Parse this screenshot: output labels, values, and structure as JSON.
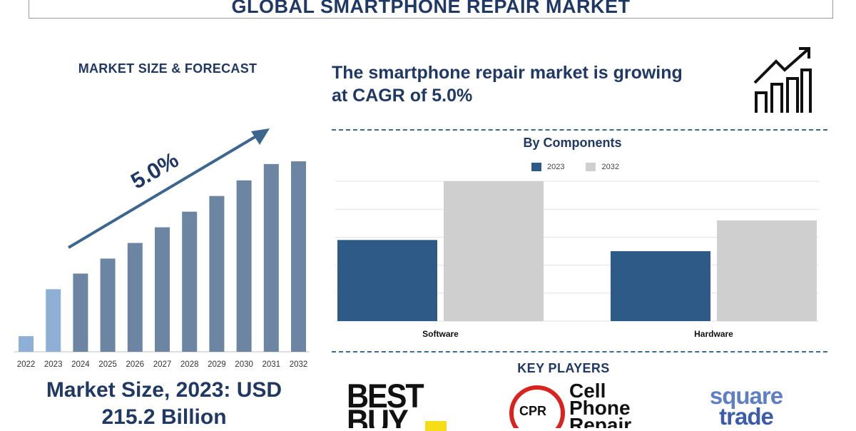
{
  "header": {
    "title": "GLOBAL SMARTPHONE REPAIR MARKET"
  },
  "left": {
    "subtitle": "MARKET SIZE & FORECAST",
    "cagr_label": "5.0%",
    "market_size_line1": "Market Size, 2023: USD",
    "market_size_line2": "215.2 Billion"
  },
  "headline": {
    "line1": "The smartphone repair market is growing",
    "line2": "at CAGR of 5.0%"
  },
  "components_title": "By Components",
  "key_players_title": "KEY PLAYERS",
  "players": {
    "bestbuy_line1": "BEST",
    "bestbuy_line2": "BUY",
    "cpr_badge": "CPR",
    "cpr_line1": "Cell",
    "cpr_line2": "Phone",
    "cpr_line3": "Repair",
    "squaretrade_line1": "square",
    "squaretrade_line2": "trade"
  },
  "icons": {
    "trend": "growth-chart-icon",
    "arrow": "trend-arrow-icon"
  },
  "colors": {
    "navy": "#1f3864",
    "bar_2022_2023": "#8fb0d6",
    "bar_forecast": "#6b85a3",
    "series_2023": "#2e5a87",
    "series_2032": "#cfcfcf",
    "arrow": "#3d668f"
  },
  "chart_data": [
    {
      "type": "bar",
      "title": "",
      "categories": [
        "2022",
        "2023",
        "2024",
        "2025",
        "2026",
        "2027",
        "2028",
        "2029",
        "2030",
        "2031",
        "2032"
      ],
      "values": [
        23,
        92,
        115,
        137,
        160,
        183,
        206,
        229,
        252,
        276,
        280
      ],
      "value_note": "relative bar heights, no axis printed",
      "ylim": [
        0,
        300
      ],
      "xlabel": "",
      "ylabel": "",
      "grid": false,
      "annotations": [
        "5.0%"
      ]
    },
    {
      "type": "bar",
      "title": "By Components",
      "categories": [
        "Software",
        "Hardware"
      ],
      "series": [
        {
          "name": "2023",
          "values": [
            58,
            50
          ]
        },
        {
          "name": "2032",
          "values": [
            100,
            72
          ]
        }
      ],
      "ylim": [
        0,
        100
      ],
      "xlabel": "",
      "ylabel": "",
      "grid": true,
      "legend": "top-center"
    }
  ]
}
